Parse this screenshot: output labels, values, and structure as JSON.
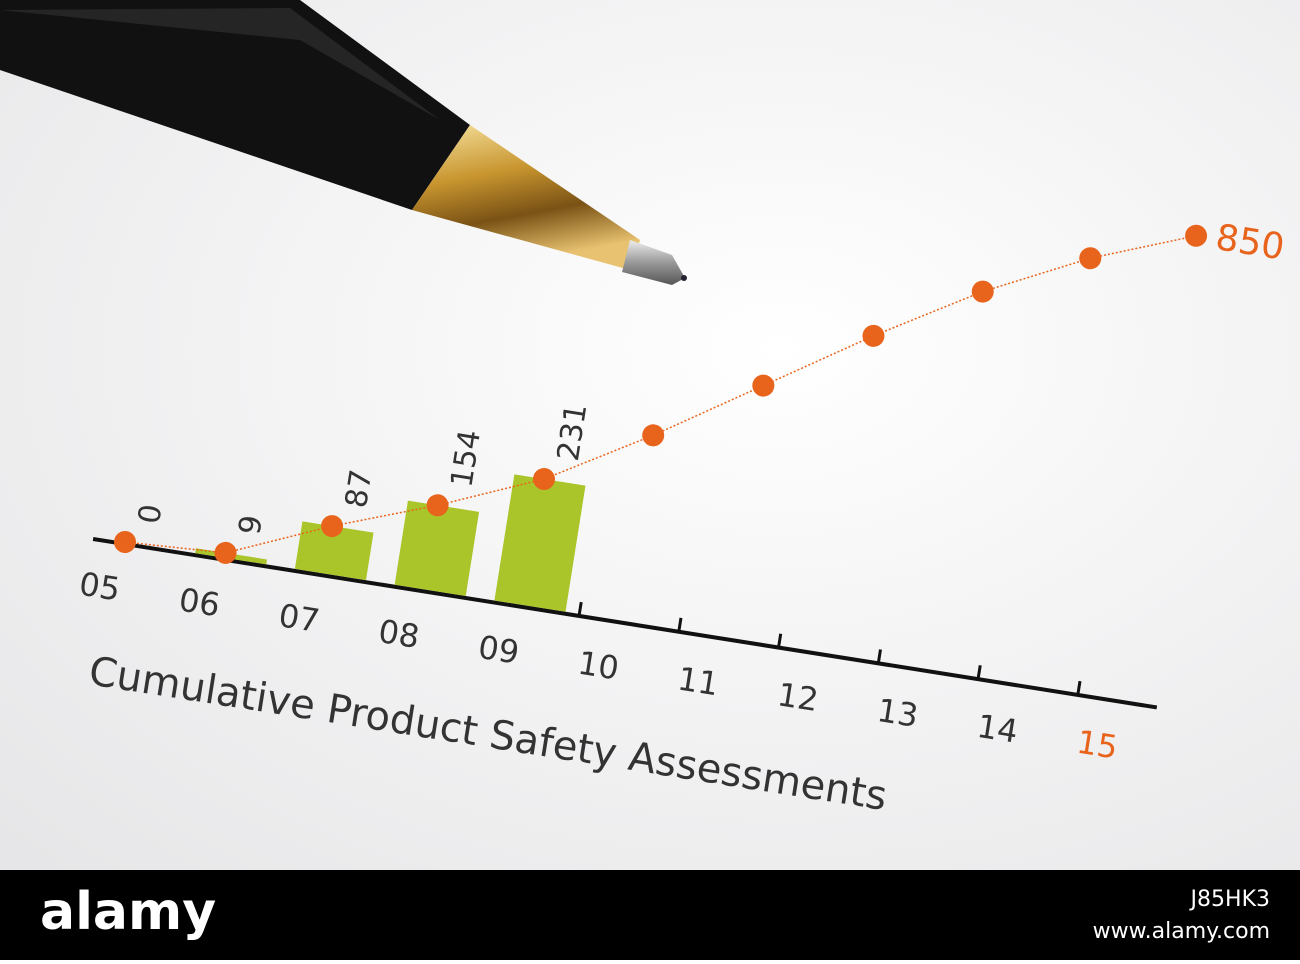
{
  "chart_data": {
    "type": "bar_line",
    "title": "Cumulative Product Safety Assessments",
    "categories": [
      "05",
      "06",
      "07",
      "08",
      "09",
      "10",
      "11",
      "12",
      "13",
      "14",
      "15"
    ],
    "series": [
      {
        "type": "bar",
        "color": "#a9c52a",
        "values": [
          0,
          9,
          87,
          154,
          231,
          null,
          null,
          null,
          null,
          null,
          null
        ]
      },
      {
        "type": "line",
        "color": "#e8641c",
        "values": [
          0,
          9,
          87,
          154,
          231,
          340,
          460,
          580,
          690,
          780,
          850
        ]
      }
    ],
    "ylim": [
      0,
      850
    ]
  },
  "watermark": {
    "brand": "alamy",
    "image_id": "J85HK3",
    "url": "www.alamy.com"
  }
}
